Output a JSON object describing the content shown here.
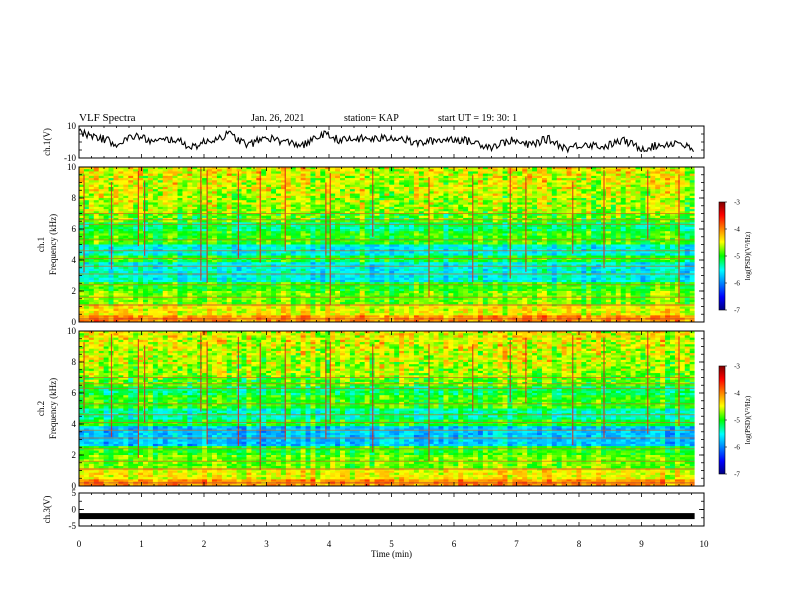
{
  "header": {
    "title": "VLF Spectra",
    "date": "Jan. 26, 2021",
    "station": "station= KAP",
    "start_ut": "start  UT =   19: 30: 1"
  },
  "chart_data": [
    {
      "type": "line",
      "panel": "ch1-waveform",
      "ylabel": "ch.1(V)",
      "ylim": [
        -10,
        10
      ],
      "yticks": [
        10,
        -10
      ],
      "xlim": [
        0,
        10
      ],
      "x": [
        0,
        0.3,
        0.6,
        0.9,
        1.2,
        1.5,
        1.8,
        2.1,
        2.4,
        2.7,
        3.0,
        3.3,
        3.6,
        3.9,
        4.2,
        4.5,
        4.8,
        5.1,
        5.4,
        5.7,
        6.0,
        6.3,
        6.6,
        6.9,
        7.2,
        7.5,
        7.8,
        8.1,
        8.4,
        8.7,
        9.0,
        9.3,
        9.6,
        9.85
      ],
      "y": [
        6,
        3,
        -1,
        4,
        0,
        2,
        -3,
        1,
        5,
        -2,
        3,
        0,
        -2,
        5,
        1,
        2,
        2,
        3,
        -1,
        1,
        2,
        0,
        -3,
        1,
        -2,
        2,
        -4,
        -1,
        -3,
        1,
        -4,
        -2,
        0,
        -6
      ]
    },
    {
      "type": "heatmap",
      "panel": "ch1-spectrogram",
      "ylabel": "ch.1 Frequency (kHz)",
      "xlim": [
        0,
        10
      ],
      "ylim": [
        0,
        10
      ],
      "yticks": [
        0,
        2,
        4,
        6,
        8,
        10
      ],
      "colorbar": {
        "label": "log(PSD)(V²/Hz)",
        "range": [
          -7,
          -3
        ],
        "ticks": [
          "-3",
          "-4",
          "-5",
          "-6",
          "-7"
        ]
      }
    },
    {
      "type": "heatmap",
      "panel": "ch2-spectrogram",
      "ylabel": "ch.2 Frequency (kHz)",
      "xlim": [
        0,
        10
      ],
      "ylim": [
        0,
        10
      ],
      "yticks": [
        0,
        2,
        4,
        6,
        8,
        10
      ],
      "colorbar": {
        "label": "log(PSD)(V²/Hz)",
        "range": [
          -7,
          -3
        ],
        "ticks": [
          "-3",
          "-4",
          "-5",
          "-6",
          "-7"
        ]
      }
    },
    {
      "type": "line",
      "panel": "ch3-waveform",
      "ylabel": "ch.3(V)",
      "ylim": [
        -5,
        5
      ],
      "yticks": [
        5,
        0,
        -5
      ],
      "x": [
        0,
        9.85
      ],
      "y": [
        -2,
        -2
      ],
      "xlim": [
        0,
        10
      ],
      "xticks": [
        0,
        1,
        2,
        3,
        4,
        5,
        6,
        7,
        8,
        9,
        10
      ],
      "xlabel": "Time  (min)"
    }
  ],
  "colors": {
    "jet": [
      "#000080",
      "#0000ff",
      "#00ffff",
      "#00ff00",
      "#ffff00",
      "#ff0000",
      "#800000"
    ]
  }
}
